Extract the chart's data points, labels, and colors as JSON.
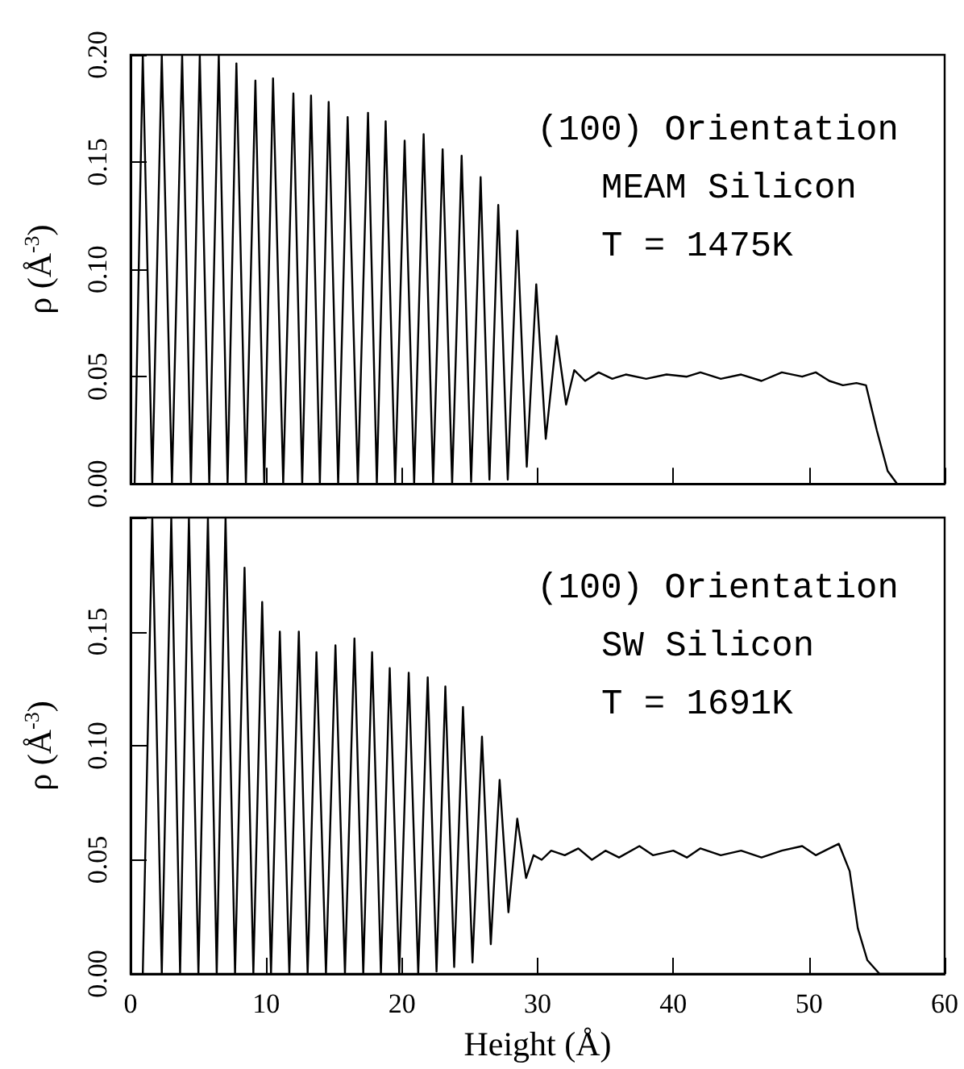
{
  "chart_data": [
    {
      "type": "line",
      "ylabel": "ρ (Å$^{-3}$)",
      "annotations": [
        "(100) Orientation",
        "MEAM Silicon",
        "T = 1475K"
      ],
      "xlim": [
        0,
        60
      ],
      "xticks": [
        0,
        10,
        20,
        30,
        40,
        50,
        60
      ],
      "ylim": [
        0,
        0.2
      ],
      "yticks": [
        {
          "value": 0,
          "label": "0.00"
        },
        {
          "value": 0.05,
          "label": "0.05"
        },
        {
          "value": 0.1,
          "label": "0.10"
        },
        {
          "value": 0.15,
          "label": "0.15"
        },
        {
          "value": 0.2,
          "label": "0.20"
        }
      ],
      "tick_labels": "y",
      "series": [
        {
          "color": "#000000",
          "x": [
            0.3,
            0.9,
            1.6,
            2.3,
            3.05,
            3.8,
            4.45,
            5.1,
            5.8,
            6.5,
            7.15,
            7.8,
            8.5,
            9.2,
            9.85,
            10.5,
            11.25,
            12.0,
            12.65,
            13.3,
            13.95,
            14.6,
            15.3,
            16.0,
            16.75,
            17.5,
            18.15,
            18.8,
            19.5,
            20.2,
            20.9,
            21.6,
            22.3,
            23.0,
            23.7,
            24.4,
            25.1,
            25.8,
            26.45,
            27.1,
            27.8,
            28.5,
            29.2,
            29.9,
            30.6,
            31.4,
            32.1,
            32.7,
            33.5,
            34.5,
            35.5,
            36.5,
            38,
            39.5,
            41,
            42,
            43.5,
            45,
            46.5,
            48,
            49.5,
            50.5,
            51.5,
            52.5,
            53.5,
            54.2,
            55,
            55.8,
            56.5,
            60
          ],
          "values": [
            0,
            0.2,
            0,
            0.2,
            0,
            0.2,
            0,
            0.2,
            0,
            0.2,
            0,
            0.196,
            0,
            0.188,
            0,
            0.189,
            0,
            0.182,
            0,
            0.181,
            0,
            0.178,
            0,
            0.171,
            0,
            0.173,
            0,
            0.169,
            0,
            0.16,
            0,
            0.163,
            0,
            0.156,
            0,
            0.153,
            0.001,
            0.143,
            0.002,
            0.13,
            0.002,
            0.118,
            0.008,
            0.093,
            0.021,
            0.069,
            0.037,
            0.053,
            0.048,
            0.052,
            0.049,
            0.051,
            0.049,
            0.051,
            0.05,
            0.052,
            0.049,
            0.051,
            0.048,
            0.052,
            0.05,
            0.052,
            0.048,
            0.046,
            0.047,
            0.046,
            0.025,
            0.006,
            0,
            0
          ]
        }
      ]
    },
    {
      "type": "line",
      "xlabel": "Height (Å)",
      "ylabel": "ρ (Å$^{-3}$)",
      "annotations": [
        "(100) Orientation",
        "SW Silicon",
        "T = 1691K"
      ],
      "xlim": [
        0,
        60
      ],
      "xticks": [
        0,
        10,
        20,
        30,
        40,
        50,
        60
      ],
      "ylim": [
        0,
        0.2
      ],
      "yticks": [
        {
          "value": 0,
          "label": "0.00"
        },
        {
          "value": 0.05,
          "label": "0.05"
        },
        {
          "value": 0.1,
          "label": "0.10"
        },
        {
          "value": 0.15,
          "label": "0.15"
        },
        {
          "value": 0.2,
          "label": null
        }
      ],
      "series": [
        {
          "color": "#000000",
          "x": [
            0.9,
            1.6,
            2.3,
            3.0,
            3.65,
            4.3,
            5.0,
            5.7,
            6.35,
            7.0,
            7.7,
            8.4,
            9.05,
            9.7,
            10.35,
            11.0,
            11.7,
            12.4,
            13.05,
            13.7,
            14.4,
            15.1,
            15.8,
            16.5,
            17.15,
            17.8,
            18.45,
            19.1,
            19.8,
            20.5,
            21.2,
            21.9,
            22.55,
            23.2,
            23.85,
            24.5,
            25.2,
            25.9,
            26.55,
            27.2,
            27.85,
            28.5,
            29.15,
            29.7,
            30.3,
            31,
            32,
            33,
            34,
            35,
            36,
            37.5,
            38.5,
            40,
            41,
            42,
            43.5,
            45,
            46.5,
            48,
            49.5,
            50.5,
            51.5,
            52.2,
            53.0,
            53.6,
            54.3,
            55.2,
            60
          ],
          "values": [
            0,
            0.2,
            0,
            0.2,
            0,
            0.2,
            0,
            0.2,
            0,
            0.2,
            0,
            0.178,
            0,
            0.163,
            0,
            0.15,
            0,
            0.15,
            0,
            0.141,
            0,
            0.144,
            0,
            0.147,
            0,
            0.141,
            0,
            0.134,
            0,
            0.132,
            0,
            0.13,
            0.001,
            0.126,
            0.003,
            0.117,
            0.005,
            0.104,
            0.013,
            0.085,
            0.027,
            0.068,
            0.042,
            0.052,
            0.05,
            0.054,
            0.052,
            0.055,
            0.05,
            0.054,
            0.051,
            0.056,
            0.052,
            0.054,
            0.051,
            0.055,
            0.052,
            0.054,
            0.051,
            0.054,
            0.056,
            0.052,
            0.055,
            0.057,
            0.045,
            0.02,
            0.006,
            0,
            0
          ]
        }
      ]
    }
  ]
}
